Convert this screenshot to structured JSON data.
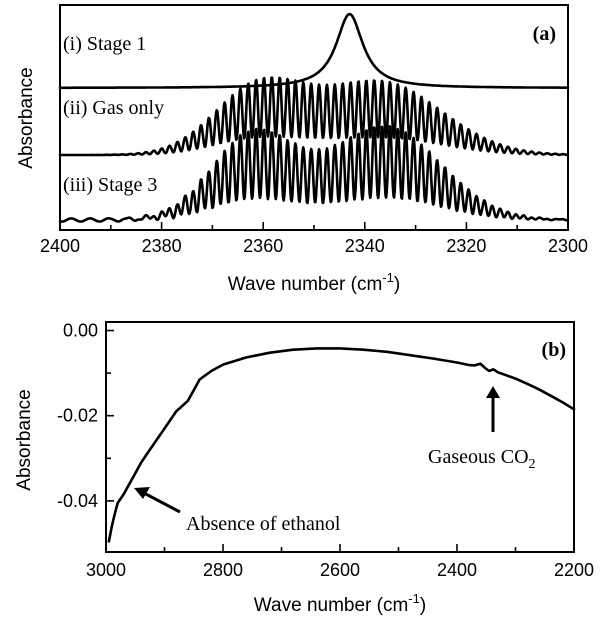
{
  "chart_data": [
    {
      "panel_label": "(a)",
      "type": "line",
      "xlabel": "Wave number (cm",
      "xlabel_sup": "-1",
      "xlabel_end": ")",
      "ylabel": "Absorbance",
      "xlim": [
        2400,
        2300
      ],
      "x_ticks": [
        "2400",
        "2380",
        "2360",
        "2340",
        "2320",
        "2300"
      ],
      "series": [
        {
          "name": "(i) Stage 1",
          "peak_center": 2343,
          "peak_width": 3.2
        },
        {
          "name": "(ii) Gas only",
          "bands": [
            {
              "center": 2361,
              "width": 8,
              "amp": 0.9
            },
            {
              "center": 2337,
              "width": 11,
              "amp": 1.0
            }
          ],
          "band_gap_min": 2349,
          "rotational_spacing": 1.55
        },
        {
          "name": "(iii) Stage 3",
          "bands": [
            {
              "center": 2362,
              "width": 7.5,
              "amp": 1.0
            },
            {
              "center": 2336,
              "width": 10,
              "amp": 1.1
            }
          ],
          "band_gap_min": 2349,
          "rotational_spacing": 1.55
        }
      ]
    },
    {
      "panel_label": "(b)",
      "type": "line",
      "xlabel": "Wave number (cm",
      "xlabel_sup": "-1",
      "xlabel_end": ")",
      "ylabel": "Absorbance",
      "xlim": [
        3000,
        2200
      ],
      "ylim": [
        -0.05,
        0.0
      ],
      "x_ticks": [
        "3000",
        "2800",
        "2600",
        "2400",
        "2200"
      ],
      "y_ticks": [
        "0.00",
        "-0.02",
        "-0.04"
      ],
      "series": [
        {
          "points": [
            [
              2995,
              -0.0495
            ],
            [
              2990,
              -0.046
            ],
            [
              2985,
              -0.043
            ],
            [
              2980,
              -0.0405
            ],
            [
              2970,
              -0.0385
            ],
            [
              2960,
              -0.036
            ],
            [
              2950,
              -0.0335
            ],
            [
              2940,
              -0.031
            ],
            [
              2930,
              -0.029
            ],
            [
              2920,
              -0.027
            ],
            [
              2900,
              -0.023
            ],
            [
              2880,
              -0.019
            ],
            [
              2860,
              -0.0165
            ],
            [
              2850,
              -0.014
            ],
            [
              2840,
              -0.0115
            ],
            [
              2820,
              -0.0095
            ],
            [
              2800,
              -0.008
            ],
            [
              2760,
              -0.0063
            ],
            [
              2720,
              -0.0052
            ],
            [
              2680,
              -0.0045
            ],
            [
              2640,
              -0.0042
            ],
            [
              2600,
              -0.0042
            ],
            [
              2560,
              -0.0045
            ],
            [
              2520,
              -0.005
            ],
            [
              2480,
              -0.0058
            ],
            [
              2440,
              -0.0066
            ],
            [
              2400,
              -0.0075
            ],
            [
              2380,
              -0.0081
            ],
            [
              2370,
              -0.0082
            ],
            [
              2360,
              -0.0078
            ],
            [
              2352,
              -0.0088
            ],
            [
              2345,
              -0.0095
            ],
            [
              2338,
              -0.0091
            ],
            [
              2330,
              -0.0098
            ],
            [
              2320,
              -0.0103
            ],
            [
              2300,
              -0.0113
            ],
            [
              2280,
              -0.0125
            ],
            [
              2260,
              -0.0138
            ],
            [
              2240,
              -0.0153
            ],
            [
              2220,
              -0.0168
            ],
            [
              2200,
              -0.0185
            ]
          ]
        }
      ],
      "annotations": [
        {
          "text": "Absence of ethanol",
          "x": 2965,
          "y": -0.039
        },
        {
          "text": "Gaseous CO",
          "sub": "2",
          "x": 2335,
          "y": -0.0105
        }
      ]
    }
  ]
}
